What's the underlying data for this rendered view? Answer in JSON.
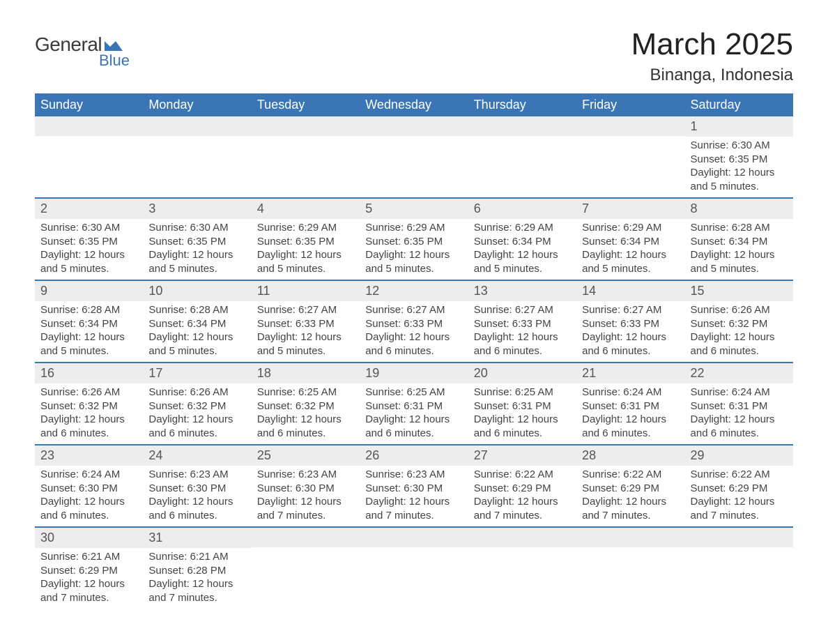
{
  "logo": {
    "text_top": "General",
    "text_bottom": "Blue",
    "shape_color": "#3a75b5"
  },
  "header": {
    "month_title": "March 2025",
    "location": "Binanga, Indonesia"
  },
  "calendar": {
    "day_names": [
      "Sunday",
      "Monday",
      "Tuesday",
      "Wednesday",
      "Thursday",
      "Friday",
      "Saturday"
    ],
    "colors": {
      "header_bg": "#3a75b5",
      "header_text": "#ffffff",
      "day_number_bg": "#ededed",
      "row_border": "#3a75b5",
      "body_text": "#444444"
    },
    "weeks": [
      [
        null,
        null,
        null,
        null,
        null,
        null,
        {
          "n": "1",
          "sunrise": "Sunrise: 6:30 AM",
          "sunset": "Sunset: 6:35 PM",
          "daylight": "Daylight: 12 hours and 5 minutes."
        }
      ],
      [
        {
          "n": "2",
          "sunrise": "Sunrise: 6:30 AM",
          "sunset": "Sunset: 6:35 PM",
          "daylight": "Daylight: 12 hours and 5 minutes."
        },
        {
          "n": "3",
          "sunrise": "Sunrise: 6:30 AM",
          "sunset": "Sunset: 6:35 PM",
          "daylight": "Daylight: 12 hours and 5 minutes."
        },
        {
          "n": "4",
          "sunrise": "Sunrise: 6:29 AM",
          "sunset": "Sunset: 6:35 PM",
          "daylight": "Daylight: 12 hours and 5 minutes."
        },
        {
          "n": "5",
          "sunrise": "Sunrise: 6:29 AM",
          "sunset": "Sunset: 6:35 PM",
          "daylight": "Daylight: 12 hours and 5 minutes."
        },
        {
          "n": "6",
          "sunrise": "Sunrise: 6:29 AM",
          "sunset": "Sunset: 6:34 PM",
          "daylight": "Daylight: 12 hours and 5 minutes."
        },
        {
          "n": "7",
          "sunrise": "Sunrise: 6:29 AM",
          "sunset": "Sunset: 6:34 PM",
          "daylight": "Daylight: 12 hours and 5 minutes."
        },
        {
          "n": "8",
          "sunrise": "Sunrise: 6:28 AM",
          "sunset": "Sunset: 6:34 PM",
          "daylight": "Daylight: 12 hours and 5 minutes."
        }
      ],
      [
        {
          "n": "9",
          "sunrise": "Sunrise: 6:28 AM",
          "sunset": "Sunset: 6:34 PM",
          "daylight": "Daylight: 12 hours and 5 minutes."
        },
        {
          "n": "10",
          "sunrise": "Sunrise: 6:28 AM",
          "sunset": "Sunset: 6:34 PM",
          "daylight": "Daylight: 12 hours and 5 minutes."
        },
        {
          "n": "11",
          "sunrise": "Sunrise: 6:27 AM",
          "sunset": "Sunset: 6:33 PM",
          "daylight": "Daylight: 12 hours and 5 minutes."
        },
        {
          "n": "12",
          "sunrise": "Sunrise: 6:27 AM",
          "sunset": "Sunset: 6:33 PM",
          "daylight": "Daylight: 12 hours and 6 minutes."
        },
        {
          "n": "13",
          "sunrise": "Sunrise: 6:27 AM",
          "sunset": "Sunset: 6:33 PM",
          "daylight": "Daylight: 12 hours and 6 minutes."
        },
        {
          "n": "14",
          "sunrise": "Sunrise: 6:27 AM",
          "sunset": "Sunset: 6:33 PM",
          "daylight": "Daylight: 12 hours and 6 minutes."
        },
        {
          "n": "15",
          "sunrise": "Sunrise: 6:26 AM",
          "sunset": "Sunset: 6:32 PM",
          "daylight": "Daylight: 12 hours and 6 minutes."
        }
      ],
      [
        {
          "n": "16",
          "sunrise": "Sunrise: 6:26 AM",
          "sunset": "Sunset: 6:32 PM",
          "daylight": "Daylight: 12 hours and 6 minutes."
        },
        {
          "n": "17",
          "sunrise": "Sunrise: 6:26 AM",
          "sunset": "Sunset: 6:32 PM",
          "daylight": "Daylight: 12 hours and 6 minutes."
        },
        {
          "n": "18",
          "sunrise": "Sunrise: 6:25 AM",
          "sunset": "Sunset: 6:32 PM",
          "daylight": "Daylight: 12 hours and 6 minutes."
        },
        {
          "n": "19",
          "sunrise": "Sunrise: 6:25 AM",
          "sunset": "Sunset: 6:31 PM",
          "daylight": "Daylight: 12 hours and 6 minutes."
        },
        {
          "n": "20",
          "sunrise": "Sunrise: 6:25 AM",
          "sunset": "Sunset: 6:31 PM",
          "daylight": "Daylight: 12 hours and 6 minutes."
        },
        {
          "n": "21",
          "sunrise": "Sunrise: 6:24 AM",
          "sunset": "Sunset: 6:31 PM",
          "daylight": "Daylight: 12 hours and 6 minutes."
        },
        {
          "n": "22",
          "sunrise": "Sunrise: 6:24 AM",
          "sunset": "Sunset: 6:31 PM",
          "daylight": "Daylight: 12 hours and 6 minutes."
        }
      ],
      [
        {
          "n": "23",
          "sunrise": "Sunrise: 6:24 AM",
          "sunset": "Sunset: 6:30 PM",
          "daylight": "Daylight: 12 hours and 6 minutes."
        },
        {
          "n": "24",
          "sunrise": "Sunrise: 6:23 AM",
          "sunset": "Sunset: 6:30 PM",
          "daylight": "Daylight: 12 hours and 6 minutes."
        },
        {
          "n": "25",
          "sunrise": "Sunrise: 6:23 AM",
          "sunset": "Sunset: 6:30 PM",
          "daylight": "Daylight: 12 hours and 7 minutes."
        },
        {
          "n": "26",
          "sunrise": "Sunrise: 6:23 AM",
          "sunset": "Sunset: 6:30 PM",
          "daylight": "Daylight: 12 hours and 7 minutes."
        },
        {
          "n": "27",
          "sunrise": "Sunrise: 6:22 AM",
          "sunset": "Sunset: 6:29 PM",
          "daylight": "Daylight: 12 hours and 7 minutes."
        },
        {
          "n": "28",
          "sunrise": "Sunrise: 6:22 AM",
          "sunset": "Sunset: 6:29 PM",
          "daylight": "Daylight: 12 hours and 7 minutes."
        },
        {
          "n": "29",
          "sunrise": "Sunrise: 6:22 AM",
          "sunset": "Sunset: 6:29 PM",
          "daylight": "Daylight: 12 hours and 7 minutes."
        }
      ],
      [
        {
          "n": "30",
          "sunrise": "Sunrise: 6:21 AM",
          "sunset": "Sunset: 6:29 PM",
          "daylight": "Daylight: 12 hours and 7 minutes."
        },
        {
          "n": "31",
          "sunrise": "Sunrise: 6:21 AM",
          "sunset": "Sunset: 6:28 PM",
          "daylight": "Daylight: 12 hours and 7 minutes."
        },
        null,
        null,
        null,
        null,
        null
      ]
    ]
  }
}
